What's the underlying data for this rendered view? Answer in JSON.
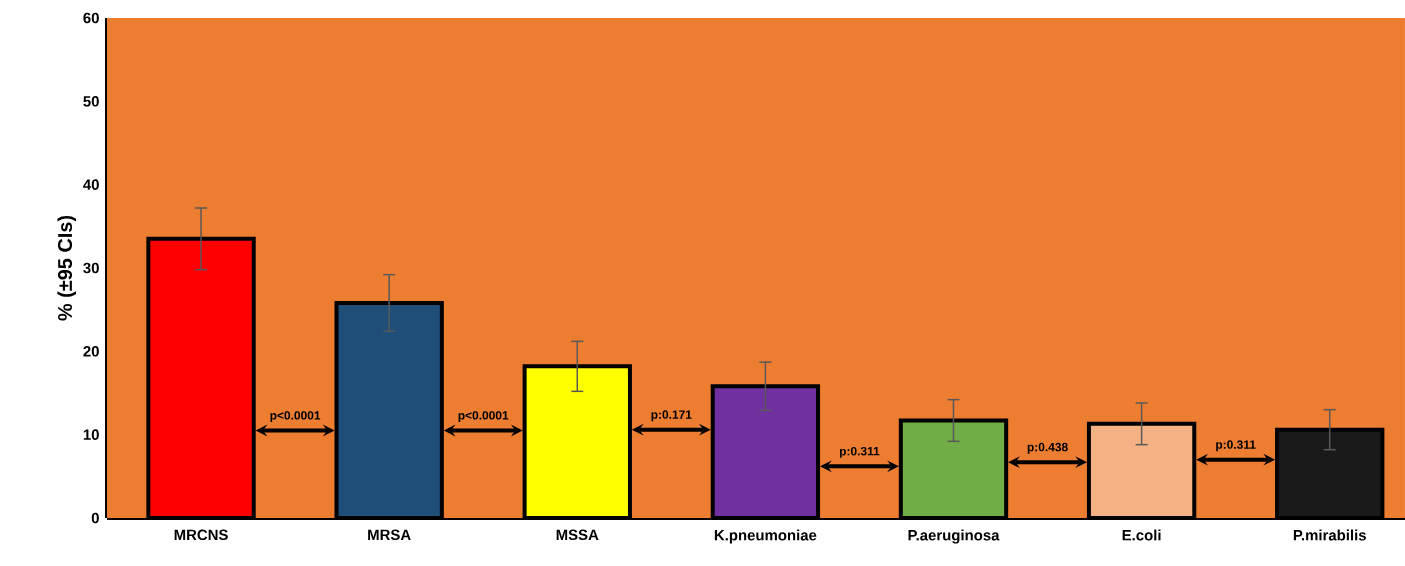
{
  "chart_data": {
    "type": "bar",
    "ylabel": "% (±95 CIs)",
    "categories": [
      "MRCNS",
      "MRSA",
      "MSSA",
      "K.pneumoniae",
      "P.aeruginosa",
      "E.coli",
      "P.mirabilis"
    ],
    "values": [
      33.5,
      25.8,
      18.2,
      15.8,
      11.7,
      11.3,
      10.6
    ],
    "errors": [
      3.7,
      3.4,
      3.0,
      2.9,
      2.5,
      2.5,
      2.4
    ],
    "colors": [
      "#ff0000",
      "#1f4e79",
      "#ffff00",
      "#7030a0",
      "#70ad47",
      "#f4b183",
      "#1a1a1a"
    ],
    "ylim": [
      0,
      60
    ],
    "yticks": [
      0,
      10,
      20,
      30,
      40,
      50,
      60
    ],
    "annotations": [
      "p<0.0001",
      "p<0.0001",
      "p:0.171",
      "p:0.311",
      "p:0.438",
      "p:0.311"
    ]
  }
}
